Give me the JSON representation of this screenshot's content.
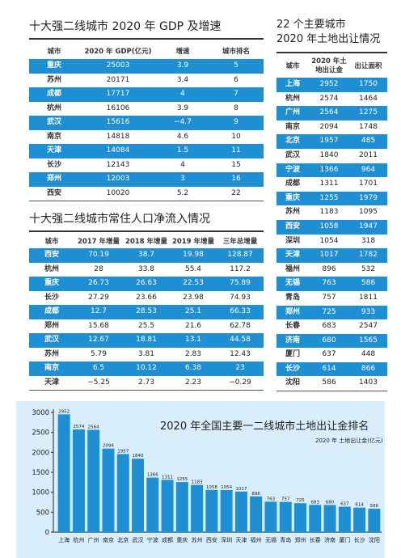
{
  "gdp": {
    "title": "十大强二线城市 2020 年 GDP 及增速",
    "headers": [
      "城市",
      "2020 年 GDP(亿元)",
      "增速",
      "城市排名"
    ],
    "rows": [
      [
        "重庆",
        "25003",
        "3.9",
        "5"
      ],
      [
        "苏州",
        "20171",
        "3.4",
        "6"
      ],
      [
        "成都",
        "17717",
        "4",
        "7"
      ],
      [
        "杭州",
        "16106",
        "3.9",
        "8"
      ],
      [
        "武汉",
        "15616",
        "−4.7",
        "9"
      ],
      [
        "南京",
        "14818",
        "4.6",
        "10"
      ],
      [
        "天津",
        "14084",
        "1.5",
        "11"
      ],
      [
        "长沙",
        "12143",
        "4",
        "15"
      ],
      [
        "郑州",
        "12003",
        "3",
        "16"
      ],
      [
        "西安",
        "10020",
        "5.2",
        "22"
      ]
    ]
  },
  "population": {
    "title": "十大强二线城市常住人口净流入情况",
    "headers": [
      "城市",
      "2017 年增量",
      "2018 年增量",
      "2019 年增量",
      "三年总增量"
    ],
    "rows": [
      [
        "西安",
        "70.19",
        "38.7",
        "19.98",
        "128.87"
      ],
      [
        "杭州",
        "28",
        "33.8",
        "55.4",
        "117.2"
      ],
      [
        "重庆",
        "26.73",
        "26.63",
        "22.53",
        "75.89"
      ],
      [
        "长沙",
        "27.29",
        "23.66",
        "23.98",
        "74.93"
      ],
      [
        "成都",
        "12.7",
        "28.53",
        "25.1",
        "66.33"
      ],
      [
        "郑州",
        "15.68",
        "25.5",
        "21.6",
        "62.78"
      ],
      [
        "武汉",
        "12.67",
        "18.81",
        "13.1",
        "44.58"
      ],
      [
        "苏州",
        "5.79",
        "3.81",
        "2.83",
        "12.43"
      ],
      [
        "南京",
        "6.5",
        "10.12",
        "6.38",
        "23"
      ],
      [
        "天津",
        "−5.25",
        "2.73",
        "2.23",
        "−0.29"
      ]
    ]
  },
  "land": {
    "title_line1": "22 个主要城市",
    "title_line2": "2020 年土地出让情况",
    "headers": [
      "城市",
      "2020 年土地出让金",
      "出让面积"
    ],
    "rows": [
      [
        "上海",
        "2952",
        "1750"
      ],
      [
        "杭州",
        "2574",
        "1464"
      ],
      [
        "广州",
        "2564",
        "1275"
      ],
      [
        "南京",
        "2094",
        "1748"
      ],
      [
        "北京",
        "1957",
        "485"
      ],
      [
        "武汉",
        "1840",
        "2011"
      ],
      [
        "宁波",
        "1366",
        "964"
      ],
      [
        "成都",
        "1311",
        "1701"
      ],
      [
        "重庆",
        "1255",
        "1979"
      ],
      [
        "苏州",
        "1183",
        "1095"
      ],
      [
        "西安",
        "1058",
        "1947"
      ],
      [
        "深圳",
        "1054",
        "318"
      ],
      [
        "天津",
        "1017",
        "1782"
      ],
      [
        "福州",
        "896",
        "532"
      ],
      [
        "无锡",
        "763",
        "586"
      ],
      [
        "青岛",
        "757",
        "1811"
      ],
      [
        "郑州",
        "725",
        "933"
      ],
      [
        "长春",
        "683",
        "2547"
      ],
      [
        "济南",
        "680",
        "1565"
      ],
      [
        "厦门",
        "637",
        "448"
      ],
      [
        "长沙",
        "614",
        "866"
      ],
      [
        "沈阳",
        "586",
        "1403"
      ]
    ]
  },
  "colors": {
    "accent": "#1f8fd3",
    "chart_bg": "#d8eefa"
  },
  "chart_data": {
    "type": "bar",
    "title": "2020 年全国主要一二线城市土地出让金排名",
    "unit_label": "2020 年 土地出让金(亿元)",
    "categories": [
      "上海",
      "杭州",
      "广州",
      "南京",
      "北京",
      "武汉",
      "宁波",
      "成都",
      "重庆",
      "苏州",
      "西安",
      "深圳",
      "天津",
      "福州",
      "无锡",
      "青岛",
      "郑州",
      "长春",
      "济南",
      "厦门",
      "长沙",
      "沈阳"
    ],
    "values": [
      2952,
      2574,
      2564,
      2094,
      1957,
      1840,
      1366,
      1311,
      1255,
      1183,
      1058,
      1054,
      1017,
      896,
      763,
      757,
      725,
      683,
      680,
      637,
      614,
      586
    ],
    "ylim": [
      0,
      3000
    ],
    "yticks": [
      0,
      500,
      1000,
      1500,
      2000,
      2500,
      3000
    ],
    "grid": false,
    "color": "#1f8fd3"
  }
}
